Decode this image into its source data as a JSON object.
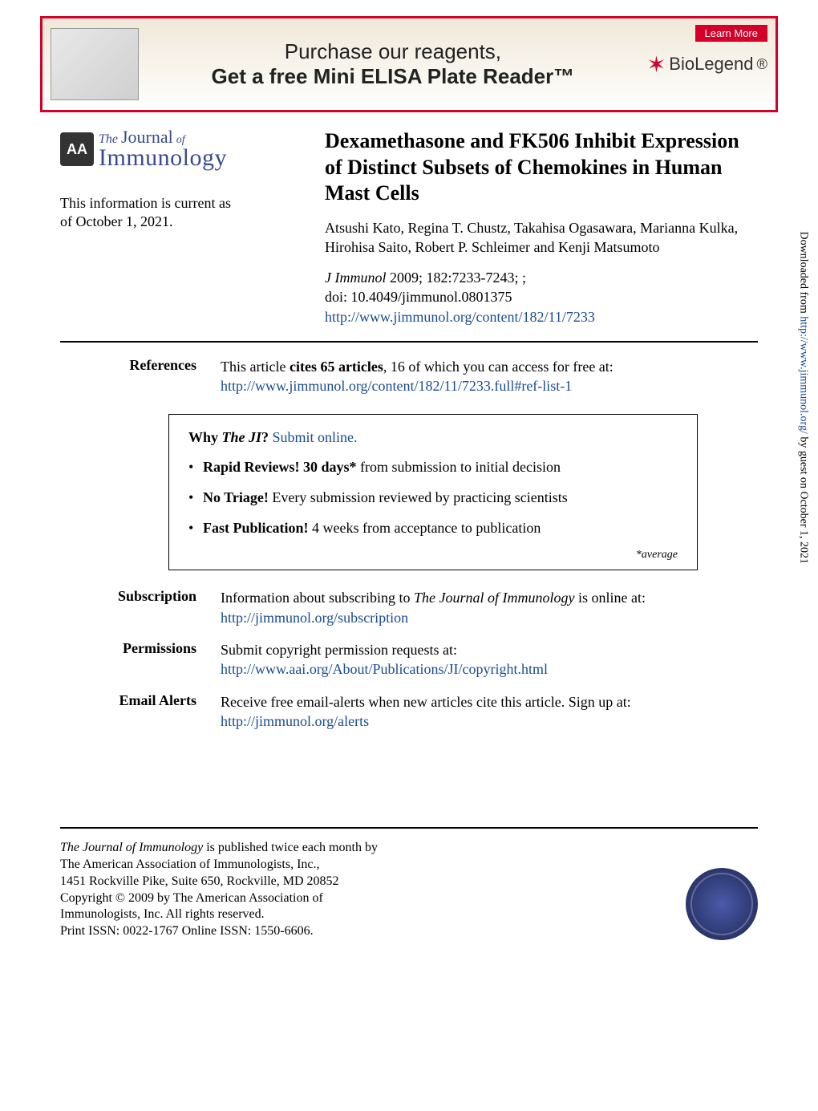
{
  "ad": {
    "line1": "Purchase our reagents,",
    "line2": "Get a free Mini ELISA Plate Reader™",
    "learn_more": "Learn More",
    "biolegend": "BioLegend",
    "reg": "®",
    "border_color": "#d4002a",
    "bg_gradient_top": "#f0e8d8"
  },
  "logo": {
    "seal": "AA",
    "the": "The",
    "journal": "Journal",
    "of": "of",
    "immunology": "Immunology",
    "color": "#3b4a8f"
  },
  "current_info": {
    "line1": "This information is current as",
    "line2": "of October 1, 2021."
  },
  "article": {
    "title": "Dexamethasone and FK506 Inhibit Expression of Distinct Subsets of Chemokines in Human Mast Cells",
    "authors": "Atsushi Kato, Regina T. Chustz, Takahisa Ogasawara, Marianna Kulka, Hirohisa Saito, Robert P. Schleimer and Kenji Matsumoto",
    "journal": "J Immunol",
    "cite_rest": " 2009; 182:7233-7243; ;",
    "doi": "doi: 10.4049/jimmunol.0801375",
    "url": "http://www.jimmunol.org/content/182/11/7233"
  },
  "references": {
    "label": "References",
    "text_a": "This article ",
    "text_b": "cites 65 articles",
    "text_c": ", 16 of which you can access for free at:",
    "url": "http://www.jimmunol.org/content/182/11/7233.full#ref-list-1"
  },
  "why": {
    "title_a": "Why ",
    "title_b": "The JI",
    "title_c": "? ",
    "submit": "Submit online.",
    "bullets": [
      {
        "b": "Rapid Reviews! 30 days*",
        "rest": " from submission to initial decision"
      },
      {
        "b": "No Triage!",
        "rest": " Every submission reviewed by practicing scientists"
      },
      {
        "b": "Fast Publication!",
        "rest": " 4 weeks from acceptance to publication"
      }
    ],
    "avg": "*average"
  },
  "info": {
    "subscription": {
      "label": "Subscription",
      "text_a": "Information about subscribing to ",
      "text_b": "The Journal of Immunology",
      "text_c": " is online at:",
      "url": "http://jimmunol.org/subscription"
    },
    "permissions": {
      "label": "Permissions",
      "text": "Submit copyright permission requests at:",
      "url": "http://www.aai.org/About/Publications/JI/copyright.html"
    },
    "alerts": {
      "label": "Email Alerts",
      "text": "Receive free email-alerts when new articles cite this article. Sign up at:",
      "url": "http://jimmunol.org/alerts"
    }
  },
  "footer": {
    "l1a": "The Journal of Immunology",
    "l1b": " is published twice each month by",
    "l2": "The American Association of Immunologists, Inc.,",
    "l3": "1451 Rockville Pike, Suite 650, Rockville, MD 20852",
    "l4": "Copyright © 2009 by The American Association of",
    "l5": "Immunologists, Inc. All rights reserved.",
    "l6": "Print ISSN: 0022-1767 Online ISSN: 1550-6606."
  },
  "side": {
    "text_a": "Downloaded from ",
    "url": "http://www.jimmunol.org/",
    "text_b": " by guest on October 1, 2021"
  },
  "colors": {
    "link": "#1a4b8f",
    "text": "#000000",
    "background": "#ffffff"
  }
}
